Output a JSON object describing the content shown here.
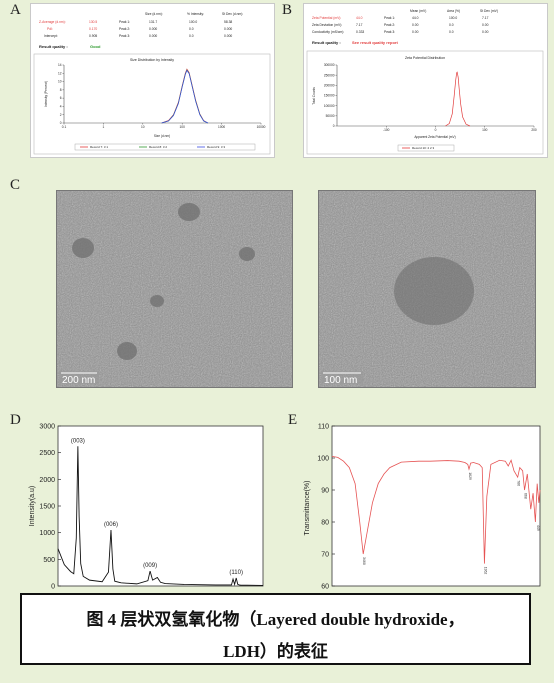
{
  "panels": {
    "a": "A",
    "b": "B",
    "c": "C",
    "d": "D",
    "e": "E"
  },
  "panel_a": {
    "col_headers": [
      "Size (d.nm):",
      "% Intensity:",
      "St Dev (d.nm):"
    ],
    "left_labels": [
      "Z-Average (d.nm):",
      "PdI:",
      "Intercept:"
    ],
    "left_values": [
      "130.5",
      "0.170",
      "0.905"
    ],
    "peak_labels": [
      "Peak 1:",
      "Peak 2:",
      "Peak 3:"
    ],
    "peak_rows": [
      [
        "131.7",
        "100.0",
        "58.38"
      ],
      [
        "0.000",
        "0.0",
        "0.000"
      ],
      [
        "0.000",
        "0.0",
        "0.000"
      ]
    ],
    "result_label": "Result quality :",
    "result_value": "Good",
    "legend": [
      "Record 7: 3 1",
      "Record 8: 3 2",
      "Record 9: 3 3"
    ]
  },
  "panel_b": {
    "col_headers": [
      "Mean (mV)",
      "Area (%)",
      "St Dev (mV)"
    ],
    "left_labels": [
      "Zeta Potential (mV):",
      "Zeta Deviation (mV):",
      "Conductivity (mS/cm):"
    ],
    "left_values": [
      "44.0",
      "7.17",
      "0.333"
    ],
    "peak_labels": [
      "Peak 1:",
      "Peak 2:",
      "Peak 3:"
    ],
    "peak_rows": [
      [
        "44.0",
        "100.0",
        "7.17"
      ],
      [
        "0.00",
        "0.0",
        "0.00"
      ],
      [
        "0.00",
        "0.0",
        "0.00"
      ]
    ],
    "result_label": "Result quality :",
    "result_value": "See result quality report",
    "legend": [
      "Record 10: 2 2 3"
    ]
  },
  "panel_c": {
    "scale_left": "200 nm",
    "scale_right": "100 nm"
  },
  "colors": {
    "accent_red": "#e23b3b",
    "good_green": "#2e9a2e",
    "xrd_line": "#111111",
    "ftir_line": "#e65353"
  },
  "caption": {
    "line1": "图 4  层状双氢氧化物（Layered double hydroxide，",
    "line2": "LDH）的表征"
  },
  "chart_data": [
    {
      "type": "line",
      "title": "Size Distribution by Intensity",
      "xlabel": "Size (d.nm)",
      "ylabel": "Intensity (Percent)",
      "x_scale": "log",
      "xlim": [
        0.1,
        10000
      ],
      "ylim": [
        0,
        14
      ],
      "x_ticks": [
        "0.1",
        "1",
        "10",
        "100",
        "1000",
        "10000"
      ],
      "y_ticks": [
        "0",
        "2",
        "4",
        "6",
        "8",
        "10",
        "12",
        "14"
      ],
      "series": [
        {
          "name": "Record 7: 3 1",
          "x": [
            30,
            45,
            60,
            80,
            100,
            120,
            131.7,
            150,
            180,
            220,
            280,
            350,
            450
          ],
          "y": [
            0,
            0.6,
            2,
            5,
            9,
            12,
            13,
            12.2,
            9,
            5.5,
            2.2,
            0.6,
            0
          ]
        },
        {
          "name": "Record 8: 3 2",
          "x": [
            30,
            45,
            60,
            80,
            100,
            120,
            131.7,
            150,
            180,
            220,
            280,
            350,
            450
          ],
          "y": [
            0,
            0.5,
            1.9,
            4.8,
            8.8,
            11.8,
            12.8,
            12,
            8.8,
            5.3,
            2.1,
            0.5,
            0
          ]
        },
        {
          "name": "Record 9: 3 3",
          "x": [
            30,
            45,
            60,
            80,
            100,
            120,
            131.7,
            150,
            180,
            220,
            280,
            350,
            450
          ],
          "y": [
            0,
            0.5,
            1.8,
            4.7,
            8.7,
            11.7,
            12.7,
            11.9,
            8.7,
            5.2,
            2,
            0.5,
            0
          ]
        }
      ]
    },
    {
      "type": "line",
      "title": "Zeta Potential Distribution",
      "xlabel": "Apparent Zeta Potential (mV)",
      "ylabel": "Total Counts",
      "xlim": [
        -200,
        200
      ],
      "ylim": [
        0,
        300000
      ],
      "x_ticks": [
        "-100",
        "0",
        "100",
        "200"
      ],
      "y_ticks": [
        "0",
        "50000",
        "100000",
        "150000",
        "200000",
        "250000",
        "300000"
      ],
      "series": [
        {
          "name": "Record 10: 2 2 3",
          "x": [
            20,
            28,
            34,
            38,
            41,
            43,
            44,
            46,
            48,
            51,
            55,
            62,
            70
          ],
          "y": [
            0,
            12000,
            60000,
            150000,
            225000,
            262000,
            265000,
            240000,
            185000,
            110000,
            45000,
            9000,
            0
          ]
        }
      ]
    },
    {
      "type": "line",
      "ylabel": "Intensity(a.u)",
      "ylim": [
        0,
        3000
      ],
      "y_ticks": [
        "0",
        "500",
        "1000",
        "1500",
        "2000",
        "2500",
        "3000"
      ],
      "annotations": [
        "(003)",
        "(006)",
        "(009)",
        "(110)"
      ],
      "series": [
        {
          "x": [
            5,
            7,
            9,
            10,
            10.8,
            11.3,
            11.7,
            12.2,
            13,
            15,
            19,
            21,
            21.8,
            22.4,
            23,
            25,
            30,
            33.5,
            34.2,
            35,
            36.5,
            37.5,
            39,
            45,
            55,
            60,
            60.5,
            61,
            61.5,
            62,
            62.5,
            63,
            65,
            70
          ],
          "y": [
            700,
            400,
            270,
            230,
            900,
            2620,
            1300,
            420,
            180,
            110,
            80,
            260,
            1050,
            320,
            90,
            60,
            40,
            100,
            280,
            110,
            160,
            70,
            45,
            30,
            20,
            20,
            130,
            30,
            150,
            30,
            20,
            15,
            15,
            10
          ]
        }
      ]
    },
    {
      "type": "line",
      "ylabel": "Transmittance(%)",
      "ylim": [
        60,
        110
      ],
      "y_ticks": [
        "60",
        "70",
        "80",
        "90",
        "100",
        "110"
      ],
      "annotations": [
        "3460",
        "1629",
        "1362",
        "786",
        "668",
        "449"
      ],
      "series": [
        {
          "x": [
            4000,
            3900,
            3800,
            3700,
            3600,
            3520,
            3460,
            3400,
            3300,
            3200,
            3100,
            3000,
            2800,
            2500,
            2300,
            2000,
            1800,
            1700,
            1650,
            1629,
            1600,
            1550,
            1450,
            1400,
            1362,
            1320,
            1250,
            1100,
            1000,
            950,
            900,
            850,
            786,
            750,
            700,
            668,
            620,
            560,
            520,
            480,
            449,
            420,
            400
          ],
          "y": [
            100.5,
            100.2,
            99,
            97,
            92,
            80,
            70,
            76,
            86,
            92,
            95,
            97,
            98.7,
            99,
            99,
            99.2,
            99,
            98.6,
            98,
            96.5,
            98.4,
            98.6,
            98,
            97,
            67,
            88,
            98,
            99.3,
            99,
            97.5,
            99.3,
            96,
            94,
            97,
            96,
            90,
            95,
            84,
            89,
            80,
            92,
            86,
            90
          ]
        }
      ]
    }
  ]
}
